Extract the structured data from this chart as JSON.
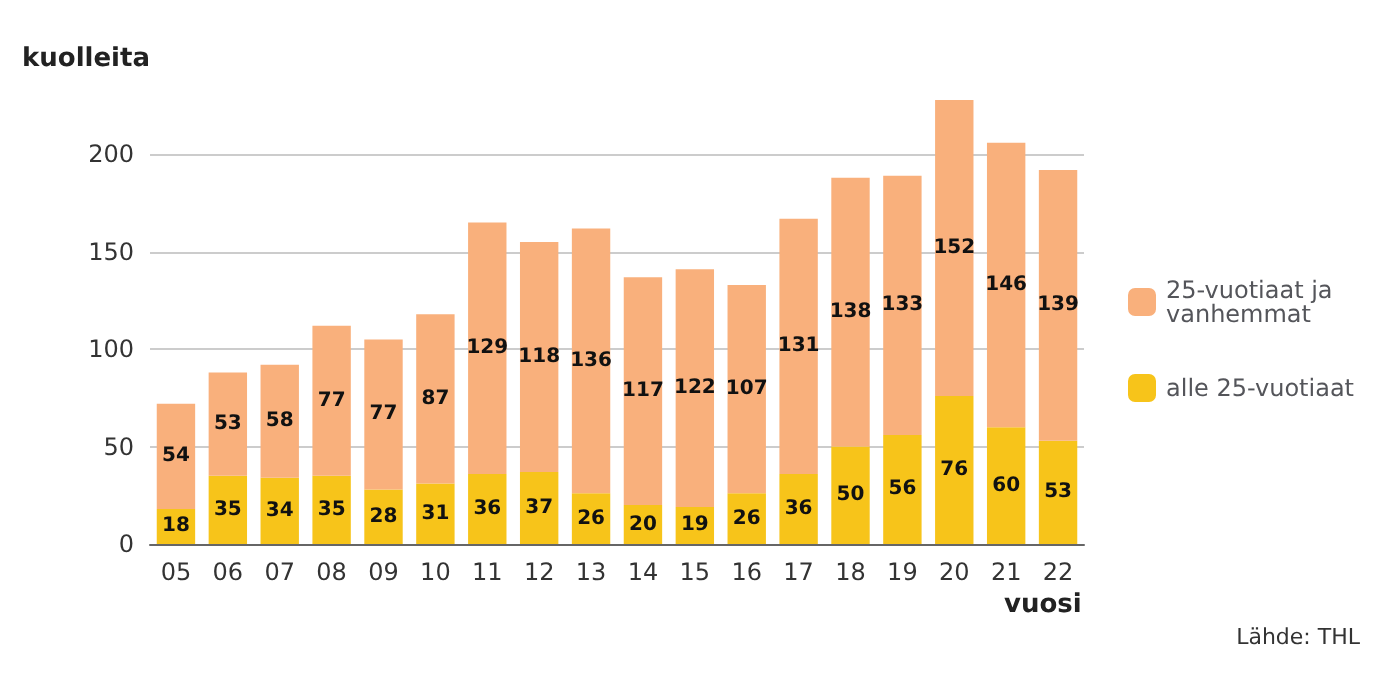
{
  "chart_data": {
    "type": "bar",
    "ylabel": "kuolleita",
    "xlabel": "vuosi",
    "categories": [
      "05",
      "06",
      "07",
      "08",
      "09",
      "10",
      "11",
      "12",
      "13",
      "14",
      "15",
      "16",
      "17",
      "18",
      "19",
      "20",
      "21",
      "22"
    ],
    "series": [
      {
        "name": "alle 25-vuotiaat",
        "color": "#f7c41a",
        "values": [
          18,
          35,
          34,
          35,
          28,
          31,
          36,
          37,
          26,
          20,
          19,
          26,
          36,
          50,
          56,
          76,
          60,
          53
        ]
      },
      {
        "name": "25-vuotiaat ja vanhemmat",
        "color": "#f9b07c",
        "values": [
          54,
          53,
          58,
          77,
          77,
          87,
          129,
          118,
          136,
          117,
          122,
          107,
          131,
          138,
          133,
          152,
          146,
          139
        ]
      }
    ],
    "stacked": true,
    "data_labels": true,
    "ylim": [
      0,
      230
    ],
    "yticks": [
      0,
      50,
      100,
      150,
      200
    ],
    "grid": "y",
    "legend": "right",
    "annotations": [
      "Lähde: THL"
    ]
  }
}
